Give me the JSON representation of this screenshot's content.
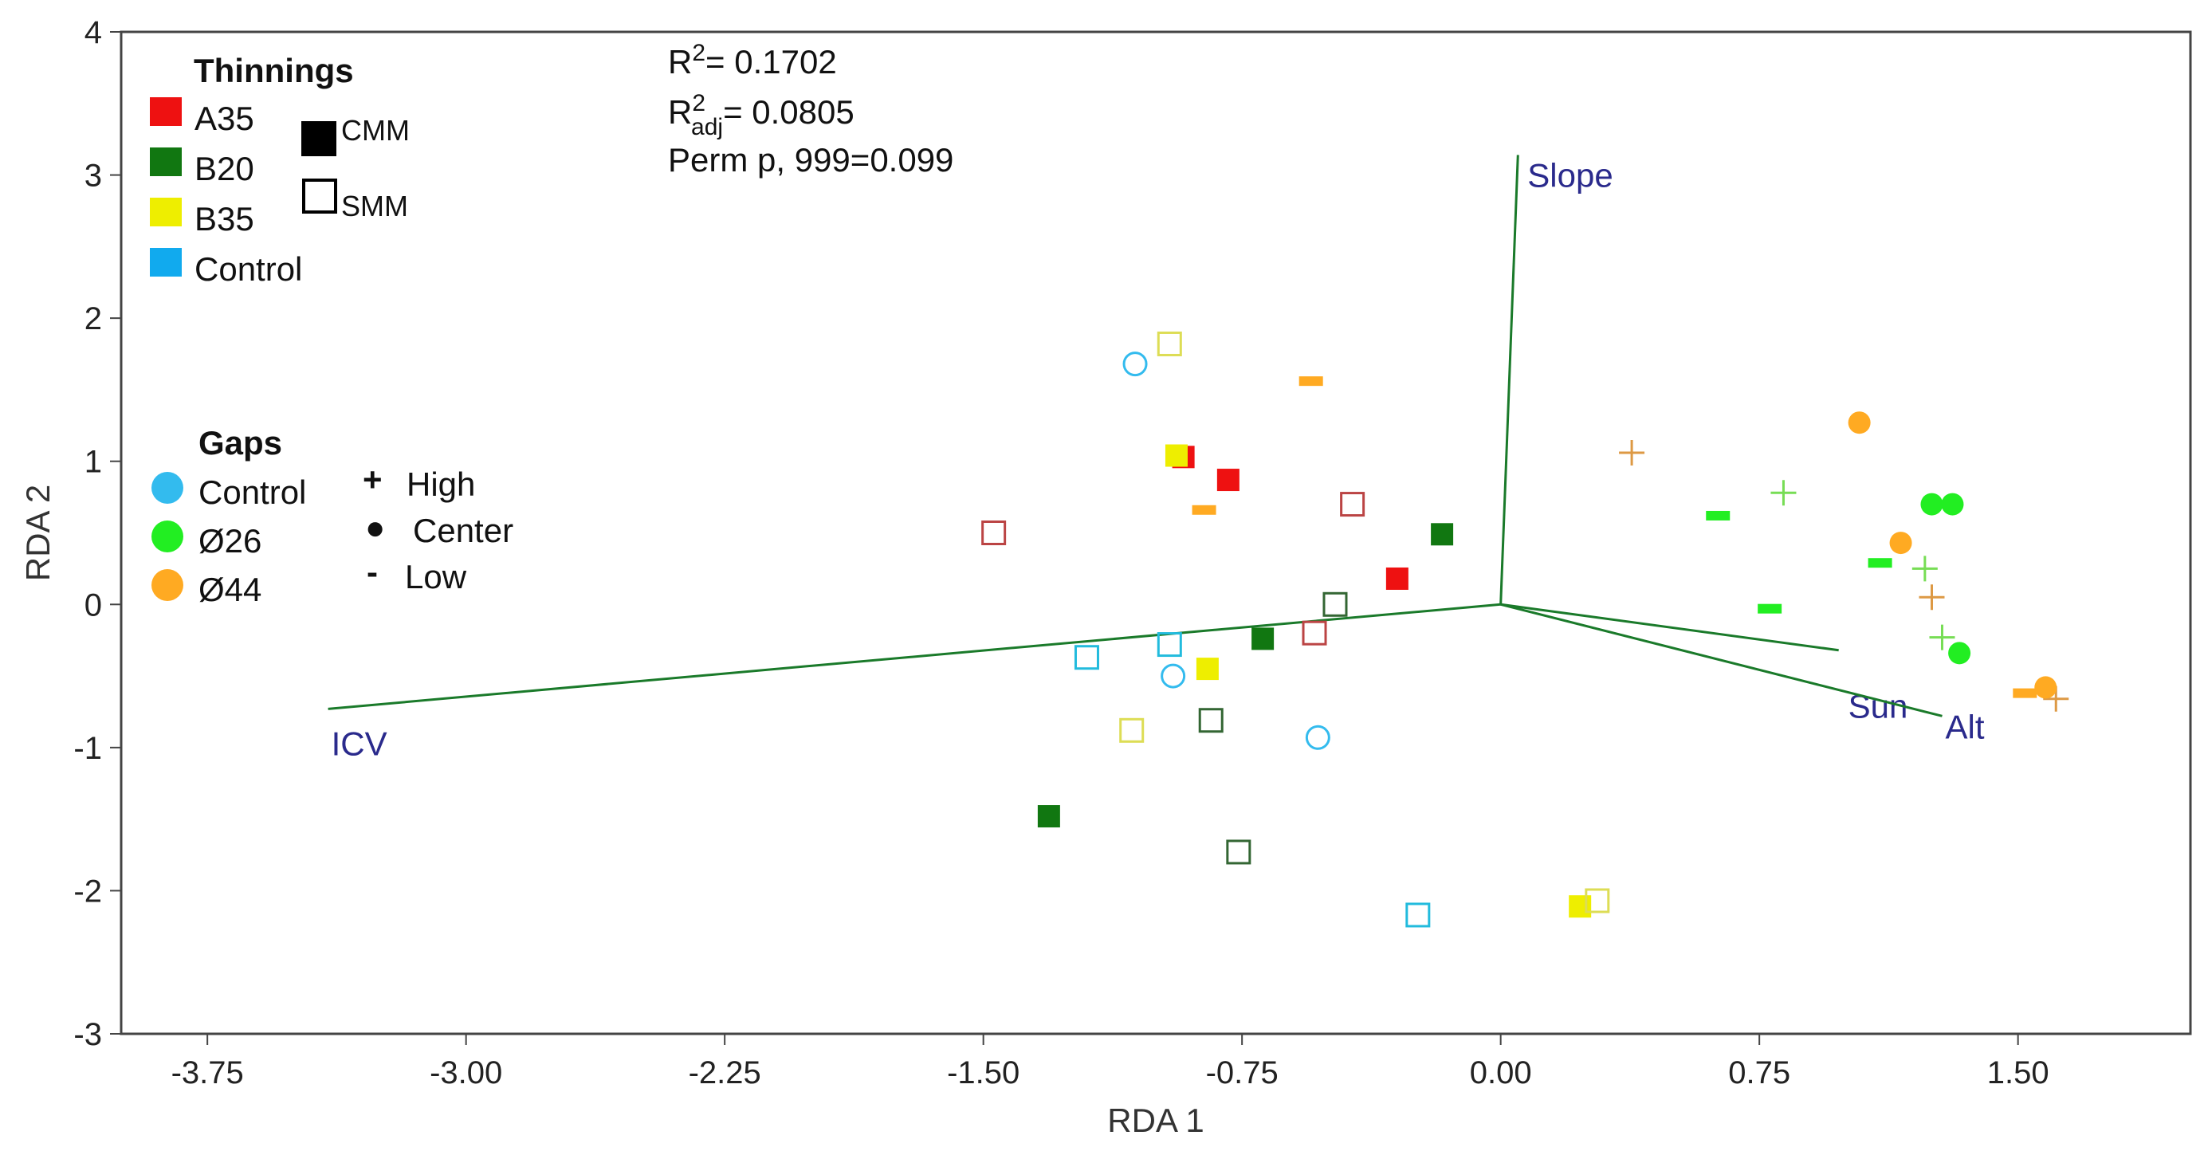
{
  "chart_data": {
    "type": "scatter",
    "xlabel": "RDA 1",
    "ylabel": "RDA 2",
    "xlim": [
      -4.0,
      2.0
    ],
    "ylim": [
      -3,
      4
    ],
    "x_ticks": [
      -3.75,
      -3.0,
      -2.25,
      -1.5,
      -0.75,
      0.0,
      0.75,
      1.5
    ],
    "x_tick_labels": [
      "-3.75",
      "-3.00",
      "-2.25",
      "-1.50",
      "-0.75",
      "0.00",
      "0.75",
      "1.50"
    ],
    "y_ticks": [
      -3,
      -2,
      -1,
      0,
      1,
      2,
      3,
      4
    ],
    "y_tick_labels": [
      "-3",
      "-2",
      "-1",
      "0",
      "1",
      "2",
      "3",
      "4"
    ],
    "stats": {
      "r2_label": "R",
      "r2_sup": "2",
      "r2_value": "= 0.1702",
      "r2adj_label": "R",
      "r2adj_sup": "2",
      "r2adj_sub": "adj",
      "r2adj_value": "= 0.0805",
      "perm": "Perm p, 999=0.099"
    },
    "vectors": [
      {
        "name": "Slope",
        "x": 0.05,
        "y": 3.14
      },
      {
        "name": "ICV",
        "x": -3.4,
        "y": -0.73
      },
      {
        "name": "Sun",
        "x": 0.98,
        "y": -0.32
      },
      {
        "name": "Alt",
        "x": 1.28,
        "y": -0.78
      }
    ],
    "vector_color": "#1a7a2a",
    "legend": {
      "thinnings_title": "Thinnings",
      "thinnings": [
        {
          "label": "A35",
          "color": "#ee1111"
        },
        {
          "label": "B20",
          "color": "#117711"
        },
        {
          "label": "B35",
          "color": "#eeee00"
        },
        {
          "label": "Control",
          "color": "#11aaee"
        }
      ],
      "cmm_label": "CMM",
      "smm_label": "SMM",
      "gaps_title": "Gaps",
      "gaps": [
        {
          "label": "Control",
          "color": "#33bbee"
        },
        {
          "label": "Ø26",
          "color": "#22ee22"
        },
        {
          "label": "Ø44",
          "color": "#ffaa22"
        }
      ],
      "positions": [
        {
          "symbol": "+",
          "label": "High"
        },
        {
          "symbol": "●",
          "label": "Center"
        },
        {
          "symbol": "-",
          "label": "Low"
        }
      ]
    },
    "series": [
      {
        "name": "A35 CMM",
        "shape": "square-filled",
        "color": "#ee1111",
        "points": [
          [
            -0.92,
            1.03
          ],
          [
            -0.79,
            0.87
          ],
          [
            -0.3,
            0.18
          ]
        ]
      },
      {
        "name": "A35 SMM",
        "shape": "square-open",
        "color": "#bb4444",
        "points": [
          [
            -1.47,
            0.5
          ],
          [
            -0.43,
            0.7
          ],
          [
            -0.54,
            -0.2
          ]
        ]
      },
      {
        "name": "B20 CMM",
        "shape": "square-filled",
        "color": "#117711",
        "points": [
          [
            -0.17,
            0.49
          ],
          [
            -0.69,
            -0.24
          ],
          [
            -1.31,
            -1.48
          ]
        ]
      },
      {
        "name": "B20 SMM",
        "shape": "square-open",
        "color": "#336633",
        "points": [
          [
            -0.48,
            0.0
          ],
          [
            -0.84,
            -0.81
          ],
          [
            -0.76,
            -1.73
          ]
        ]
      },
      {
        "name": "B35 CMM",
        "shape": "square-filled",
        "color": "#eeee00",
        "points": [
          [
            -0.94,
            1.04
          ],
          [
            -0.85,
            -0.45
          ],
          [
            0.23,
            -2.11
          ]
        ]
      },
      {
        "name": "B35 SMM",
        "shape": "square-open",
        "color": "#dddd55",
        "points": [
          [
            -0.96,
            1.82
          ],
          [
            -1.07,
            -0.88
          ],
          [
            0.28,
            -2.07
          ]
        ]
      },
      {
        "name": "Control SMM",
        "shape": "square-open",
        "color": "#22bbdd",
        "points": [
          [
            -1.2,
            -0.37
          ],
          [
            -0.96,
            -0.28
          ],
          [
            -0.24,
            -2.17
          ]
        ]
      },
      {
        "name": "Gap Control Center",
        "shape": "circle-open",
        "color": "#33bbee",
        "points": [
          [
            -1.06,
            1.68
          ],
          [
            -0.95,
            -0.5
          ],
          [
            -0.53,
            -0.93
          ]
        ]
      },
      {
        "name": "Ø26 High",
        "shape": "plus",
        "color": "#77dd55",
        "points": [
          [
            0.82,
            0.78
          ],
          [
            1.23,
            0.25
          ],
          [
            1.28,
            -0.23
          ]
        ]
      },
      {
        "name": "Ø26 Center",
        "shape": "circle-filled",
        "color": "#22ee22",
        "points": [
          [
            1.25,
            0.7
          ],
          [
            1.31,
            0.7
          ],
          [
            1.33,
            -0.34
          ]
        ]
      },
      {
        "name": "Ø26 Low",
        "shape": "dash",
        "color": "#22ee22",
        "points": [
          [
            0.63,
            0.62
          ],
          [
            0.78,
            -0.03
          ],
          [
            1.1,
            0.29
          ]
        ]
      },
      {
        "name": "Ø44 High",
        "shape": "plus",
        "color": "#dd9944",
        "points": [
          [
            0.38,
            1.06
          ],
          [
            1.25,
            0.05
          ],
          [
            1.61,
            -0.66
          ]
        ]
      },
      {
        "name": "Ø44 Center",
        "shape": "circle-filled",
        "color": "#ffaa22",
        "points": [
          [
            1.04,
            1.27
          ],
          [
            1.16,
            0.43
          ],
          [
            1.58,
            -0.58
          ]
        ]
      },
      {
        "name": "Ø44 Low",
        "shape": "dash",
        "color": "#ffaa22",
        "points": [
          [
            -0.55,
            1.56
          ],
          [
            -0.86,
            0.66
          ],
          [
            1.52,
            -0.62
          ]
        ]
      }
    ]
  }
}
